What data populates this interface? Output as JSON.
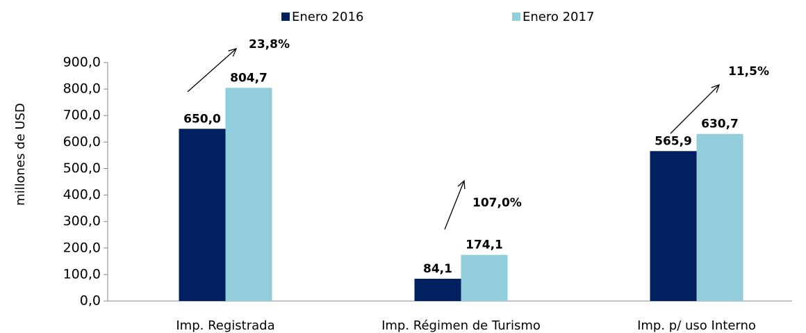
{
  "chart_data": {
    "type": "bar",
    "categories": [
      "Imp. Registrada",
      "Imp. Régimen de Turismo",
      "Imp. p/ uso Interno"
    ],
    "series": [
      {
        "name": "Enero 2016",
        "color": "#002060",
        "values": [
          650.0,
          84.1,
          565.9
        ],
        "value_labels": [
          "650,0",
          "84,1",
          "565,9"
        ]
      },
      {
        "name": "Enero 2017",
        "color": "#92cddc",
        "values": [
          804.7,
          174.1,
          630.7
        ],
        "value_labels": [
          "804,7",
          "174,1",
          "630,7"
        ]
      }
    ],
    "y_axis_label": "millones de USD",
    "ylim": [
      0,
      900
    ],
    "yticks": [
      {
        "value": 0,
        "label": "0,0"
      },
      {
        "value": 100,
        "label": "100,0"
      },
      {
        "value": 200,
        "label": "200,0"
      },
      {
        "value": 300,
        "label": "300,0"
      },
      {
        "value": 400,
        "label": "400,0"
      },
      {
        "value": 500,
        "label": "500,0"
      },
      {
        "value": 600,
        "label": "600,0"
      },
      {
        "value": 700,
        "label": "700,0"
      },
      {
        "value": 800,
        "label": "800,0"
      },
      {
        "value": 900,
        "label": "900,0"
      }
    ],
    "annotations": [
      "23,8%",
      "107,0%",
      "11,5%"
    ],
    "legend": "top",
    "grid": false
  }
}
